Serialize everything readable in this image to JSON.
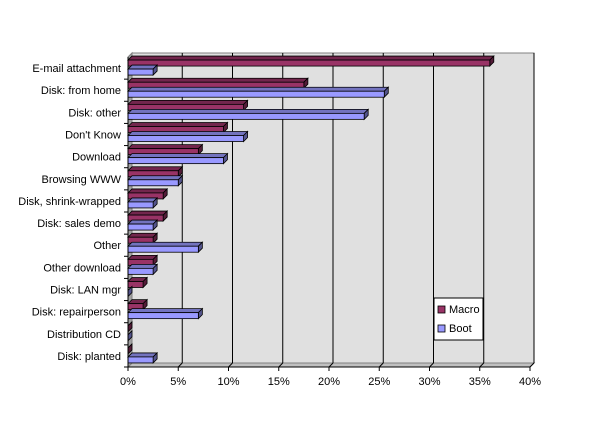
{
  "chart_data": {
    "type": "bar",
    "orientation": "horizontal",
    "three_d": true,
    "title": "",
    "xlabel": "",
    "ylabel": "",
    "categories": [
      "E-mail attachment",
      "Disk: from home",
      "Disk: other",
      "Don't Know",
      "Download",
      "Browsing WWW",
      "Disk, shrink-wrapped",
      "Disk: sales demo",
      "Other",
      "Other download",
      "Disk: LAN mgr",
      "Disk: repairperson",
      "Distribution CD",
      "Disk: planted"
    ],
    "series": [
      {
        "name": "Macro",
        "color": "#993366",
        "values": [
          36,
          17.5,
          11.5,
          9.5,
          7,
          5,
          3.5,
          3.5,
          2.5,
          2.5,
          1.5,
          1.5,
          0,
          0
        ]
      },
      {
        "name": "Boot",
        "color": "#9999ff",
        "values": [
          2.5,
          25.5,
          23.5,
          11.5,
          9.5,
          5,
          2.5,
          2.5,
          7,
          2.5,
          0,
          7,
          0,
          2.5
        ]
      }
    ],
    "xlim": [
      0,
      40
    ],
    "x_ticks": [
      "0%",
      "5%",
      "10%",
      "15%",
      "20%",
      "25%",
      "30%",
      "35%",
      "40%"
    ],
    "gridlines": "vertical",
    "plot_background": "#e0e0e0",
    "legend_position": "bottom-right"
  }
}
